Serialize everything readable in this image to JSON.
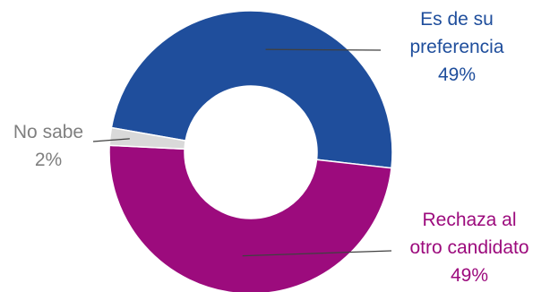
{
  "chart_data": {
    "type": "pie",
    "donut": true,
    "slices": [
      {
        "label_lines": [
          "Es de su",
          "preferencia"
        ],
        "value": 49,
        "value_label": "49%",
        "color": "#1f4e9c"
      },
      {
        "label_lines": [
          "Rechaza al",
          "otro candidato"
        ],
        "value": 49,
        "value_label": "49%",
        "color": "#9c0b7d"
      },
      {
        "label_lines": [
          "No sabe"
        ],
        "value": 2,
        "value_label": "2%",
        "color": "#d9d9d9"
      }
    ],
    "legend": "none"
  }
}
